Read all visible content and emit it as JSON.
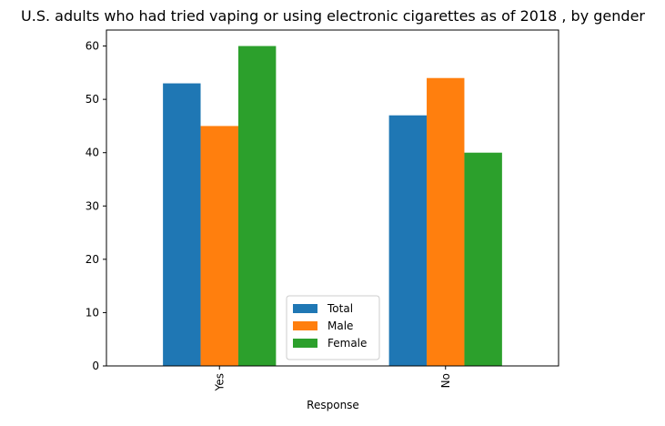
{
  "chart_data": {
    "type": "bar",
    "title": "U.S. adults who had tried vaping or using electronic cigarettes as of 2018 , by gender",
    "xlabel": "Response",
    "ylabel": "",
    "categories": [
      "Yes",
      "No"
    ],
    "series": [
      {
        "name": "Total",
        "values": [
          53,
          47
        ],
        "color": "#1f77b4"
      },
      {
        "name": "Male",
        "values": [
          45,
          54
        ],
        "color": "#ff7f0e"
      },
      {
        "name": "Female",
        "values": [
          60,
          40
        ],
        "color": "#2ca02c"
      }
    ],
    "ylim": [
      0,
      63
    ],
    "yticks": [
      0,
      10,
      20,
      30,
      40,
      50,
      60
    ],
    "grid": false,
    "legend_position": "lower-center"
  }
}
